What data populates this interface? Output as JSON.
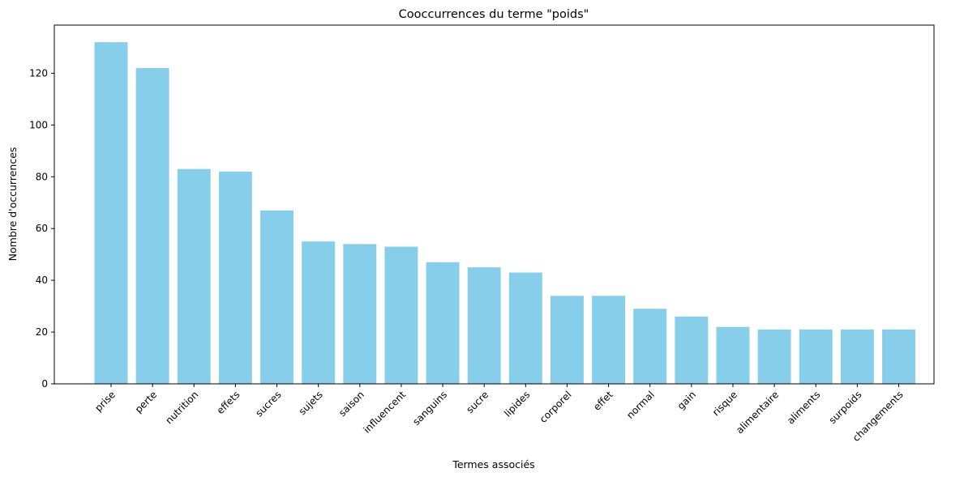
{
  "chart_data": {
    "type": "bar",
    "title": "Cooccurrences du terme \"poids\"",
    "xlabel": "Termes associés",
    "ylabel": "Nombre d'occurrences",
    "categories": [
      "prise",
      "perte",
      "nutrition",
      "effets",
      "sucres",
      "sujets",
      "saison",
      "influencent",
      "sanguins",
      "sucre",
      "lipides",
      "corporel",
      "effet",
      "normal",
      "gain",
      "risque",
      "alimentaire",
      "aliments",
      "surpoids",
      "changements"
    ],
    "values": [
      132,
      122,
      83,
      82,
      67,
      55,
      54,
      53,
      47,
      45,
      43,
      34,
      34,
      29,
      26,
      22,
      21,
      21,
      21,
      21
    ],
    "ylim": [
      0,
      138.6
    ],
    "yticks": [
      0,
      20,
      40,
      60,
      80,
      100,
      120
    ],
    "bar_color": "#87CEEB",
    "grid": false,
    "legend": "none"
  }
}
